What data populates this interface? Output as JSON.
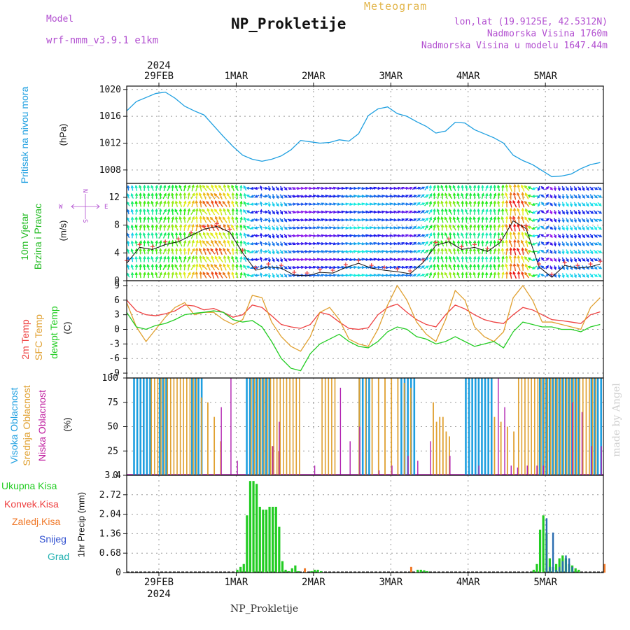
{
  "header": {
    "model_label": "Model",
    "model_value": "wrf-nmm_v3.9.1 e1km",
    "title": "NP_Prokletije",
    "subtitle": "Meteogram",
    "location": "lon,lat (19.9125E, 42.5312N)",
    "altitude": "Nadmorska Visina 1760m",
    "model_altitude": "Nadmorska Visina u modelu 1647.44m"
  },
  "footer": {
    "station": "NP_Prokletije",
    "credit": "made by Angel"
  },
  "time_axis": {
    "top_year": "2024",
    "bottom_year": "2024",
    "days": [
      "29FEB",
      "1MAR",
      "2MAR",
      "3MAR",
      "4MAR",
      "5MAR"
    ]
  },
  "panels": {
    "pressure": {
      "title": "Pritisak na nivou mora",
      "unit": "(hPa)"
    },
    "wind": {
      "title_line1": "10m Vjetar",
      "title_line2": "Brzina i Pravac",
      "unit": "(m/s)",
      "compass": {
        "n": "N",
        "e": "E",
        "w": "W",
        "s": "S"
      }
    },
    "temperature": {
      "label_2m": "2m Temp",
      "label_sfc": "SFC Temp",
      "label_dew": "dewpt Temp",
      "unit": "(C)"
    },
    "clouds": {
      "label_high": "Visoka Oblacnost",
      "label_mid": "Srednja Oblacnost",
      "label_low": "Niska Oblacnost",
      "unit": "(%)"
    },
    "precip": {
      "unit": "1hr Precip (mm)",
      "legend": [
        "Ukupna Kisa",
        "Konvek.Kisa",
        "Zaledj.Kisa",
        "Snijeg",
        "Grad"
      ]
    }
  },
  "colors": {
    "pressure": "#1e9fe0",
    "t2m": "#ee4040",
    "tsfc": "#e0a030",
    "tdew": "#22cc22",
    "cloud_high": "#1e9fe0",
    "cloud_mid": "#e0a030",
    "cloud_low": "#b020b0",
    "precip_total": "#22cc22",
    "precip_conv": "#ee4040",
    "precip_freezing": "#f07828",
    "precip_snow": "#3050d0",
    "precip_hail": "#20b0b0",
    "purple": "#b24fd0"
  },
  "chart_data": [
    {
      "type": "line",
      "name": "pressure",
      "ylim": [
        1006,
        1020.5
      ],
      "yticks": [
        "1008",
        "1012",
        "1016",
        "1020"
      ],
      "x_hours": [
        0,
        3,
        6,
        9,
        12,
        15,
        18,
        21,
        24,
        27,
        30,
        33,
        36,
        39,
        42,
        45,
        48,
        51,
        54,
        57,
        60,
        63,
        66,
        69,
        72,
        75,
        78,
        81,
        84,
        87,
        90,
        93,
        96,
        99,
        102,
        105,
        108,
        111,
        114,
        117,
        120,
        123,
        126,
        129,
        132,
        135,
        138,
        141,
        144,
        147
      ],
      "values": [
        1016.8,
        1018.2,
        1018.8,
        1019.4,
        1019.6,
        1018.7,
        1017.5,
        1016.8,
        1016.2,
        1014.6,
        1013.0,
        1011.5,
        1010.2,
        1009.6,
        1009.3,
        1009.6,
        1010.1,
        1011.0,
        1012.4,
        1012.2,
        1012.0,
        1012.1,
        1012.5,
        1012.3,
        1013.4,
        1016.1,
        1017.1,
        1017.4,
        1016.4,
        1016.0,
        1015.2,
        1014.5,
        1013.5,
        1013.8,
        1015.1,
        1015.0,
        1014.0,
        1013.4,
        1012.8,
        1012.0,
        1010.2,
        1009.4,
        1008.8,
        1007.9,
        1007.0,
        1007.1,
        1007.4,
        1008.2,
        1008.8,
        1009.1
      ]
    },
    {
      "type": "scatter",
      "name": "wind",
      "ylim": [
        0,
        14
      ],
      "yticks": [
        "0",
        "4",
        "8",
        "12"
      ],
      "x_hours": [
        0,
        4,
        8,
        12,
        16,
        20,
        24,
        28,
        32,
        36,
        40,
        44,
        48,
        52,
        56,
        60,
        64,
        68,
        72,
        76,
        80,
        84,
        88,
        92,
        96,
        100,
        104,
        108,
        112,
        116,
        120,
        124,
        128,
        132,
        136,
        140,
        144,
        147
      ],
      "speed": [
        2.5,
        4.8,
        4.5,
        5.2,
        5.6,
        6.5,
        7.4,
        7.8,
        7.0,
        4.0,
        1.5,
        2.0,
        1.8,
        0.8,
        0.7,
        1.2,
        1.1,
        1.9,
        2.5,
        1.8,
        1.5,
        1.3,
        1.0,
        2.6,
        5.1,
        5.6,
        4.5,
        4.8,
        4.2,
        5.5,
        8.6,
        7.5,
        2.0,
        0.5,
        2.2,
        1.8,
        2.0,
        2.4
      ],
      "direction_deg": [
        200,
        180,
        190,
        160,
        200,
        150,
        210,
        210,
        200,
        180,
        320,
        20,
        30,
        80,
        90,
        100,
        90,
        90,
        90,
        100,
        90,
        100,
        110,
        120,
        180,
        200,
        190,
        180,
        170,
        180,
        190,
        200,
        330,
        20,
        20,
        30,
        40,
        60
      ]
    },
    {
      "type": "line",
      "name": "temperature",
      "ylim": [
        -10,
        10
      ],
      "yticks": [
        "-9",
        "-6",
        "-3",
        "0",
        "3",
        "6",
        "9"
      ],
      "x_hours": [
        0,
        3,
        6,
        9,
        12,
        15,
        18,
        21,
        24,
        27,
        30,
        33,
        36,
        39,
        42,
        45,
        48,
        51,
        54,
        57,
        60,
        63,
        66,
        69,
        72,
        75,
        78,
        81,
        84,
        87,
        90,
        93,
        96,
        99,
        102,
        105,
        108,
        111,
        114,
        117,
        120,
        123,
        126,
        129,
        132,
        135,
        138,
        141,
        144,
        147
      ],
      "series": [
        {
          "name": "2m Temp",
          "values": [
            6.0,
            3.8,
            3.0,
            2.8,
            3.2,
            3.8,
            5.0,
            4.8,
            4.0,
            4.3,
            3.5,
            2.5,
            3.0,
            5.0,
            4.5,
            2.8,
            1.0,
            0.5,
            0.2,
            1.0,
            3.5,
            3.0,
            1.5,
            0.2,
            0.0,
            0.3,
            3.0,
            4.5,
            5.2,
            3.5,
            2.0,
            1.0,
            0.5,
            3.0,
            5.0,
            4.2,
            3.0,
            2.0,
            1.5,
            1.2,
            3.0,
            4.5,
            4.0,
            3.0,
            2.0,
            1.8,
            1.5,
            1.2,
            3.0,
            3.6
          ]
        },
        {
          "name": "SFC Temp",
          "values": [
            5.5,
            0.5,
            -2.5,
            0.0,
            2.5,
            4.5,
            5.5,
            3.0,
            3.5,
            3.5,
            2.0,
            1.0,
            2.0,
            7.0,
            6.5,
            1.5,
            -1.5,
            -3.5,
            -4.5,
            -1.5,
            3.5,
            4.5,
            2.0,
            -2.0,
            -3.0,
            -3.5,
            0.0,
            5.0,
            9.0,
            6.0,
            1.5,
            -1.0,
            -2.5,
            2.0,
            8.0,
            6.0,
            0.5,
            -1.5,
            -2.5,
            -0.5,
            6.5,
            9.0,
            6.0,
            1.5,
            1.5,
            1.0,
            0.5,
            0.0,
            4.5,
            6.5
          ]
        },
        {
          "name": "dewpt Temp",
          "values": [
            3.5,
            0.5,
            0.0,
            0.8,
            1.2,
            2.0,
            3.0,
            3.3,
            3.5,
            3.8,
            3.5,
            2.0,
            1.5,
            1.8,
            0.5,
            -2.5,
            -6.0,
            -8.0,
            -8.5,
            -5.0,
            -3.0,
            -2.0,
            -1.0,
            -2.5,
            -3.5,
            -3.8,
            -2.5,
            -0.5,
            0.5,
            0.0,
            -1.5,
            -2.0,
            -3.0,
            -2.5,
            -1.5,
            -2.5,
            -3.5,
            -3.0,
            -2.5,
            -3.8,
            -0.5,
            1.5,
            1.0,
            0.5,
            0.5,
            0.0,
            0.0,
            -0.5,
            0.5,
            1.0
          ]
        }
      ]
    },
    {
      "type": "bar",
      "name": "clouds",
      "ylim": [
        0,
        100
      ],
      "yticks": [
        "0",
        "25",
        "50",
        "75",
        "100"
      ],
      "hour_step": 1,
      "high_ranges": [
        [
          2,
          8
        ],
        [
          10,
          13
        ],
        [
          20,
          24
        ],
        [
          37,
          45
        ],
        [
          72,
          76
        ],
        [
          85,
          90
        ],
        [
          105,
          114
        ],
        [
          128,
          141
        ],
        [
          144,
          148
        ]
      ],
      "mid_ranges": [
        [
          7,
          22
        ],
        [
          38,
          54
        ],
        [
          60,
          65
        ],
        [
          121,
          146
        ]
      ],
      "mid_scattered_hours": [
        23,
        25,
        27,
        29,
        45,
        47,
        72,
        74,
        76,
        78,
        80,
        82,
        84,
        86,
        88,
        95,
        96,
        97,
        98,
        99,
        100,
        114,
        116,
        118,
        120
      ],
      "mid_scattered_values": [
        80,
        75,
        60,
        35,
        30,
        25,
        100,
        100,
        100,
        100,
        100,
        100,
        100,
        95,
        90,
        75,
        55,
        60,
        60,
        45,
        40,
        60,
        55,
        50,
        45
      ],
      "low_hours": [
        29,
        32,
        34,
        45,
        47,
        58,
        66,
        69,
        72,
        78,
        82,
        87,
        90,
        94,
        100,
        109,
        115,
        117,
        119,
        121,
        124,
        127,
        129,
        138,
        141,
        144,
        147
      ],
      "low_values": [
        70,
        100,
        15,
        30,
        55,
        10,
        90,
        35,
        50,
        5,
        10,
        20,
        15,
        35,
        20,
        10,
        100,
        70,
        10,
        8,
        10,
        10,
        10,
        75,
        65,
        30,
        30
      ]
    },
    {
      "type": "bar",
      "name": "precip",
      "ylim": [
        0,
        3.4
      ],
      "yticks": [
        "0",
        "0.68",
        "1.36",
        "2.04",
        "2.72",
        "3.4"
      ],
      "total_hours": [
        34,
        35,
        36,
        37,
        38,
        39,
        40,
        41,
        42,
        43,
        44,
        45,
        46,
        47,
        48,
        49,
        50,
        51,
        52,
        53,
        57,
        58,
        59,
        60,
        90,
        91,
        92,
        93,
        126,
        127,
        128,
        129,
        130,
        131,
        132,
        133,
        134,
        135,
        136,
        137,
        138,
        139,
        140
      ],
      "total_values": [
        0.1,
        0.2,
        0.3,
        2.0,
        3.2,
        3.2,
        3.1,
        2.3,
        2.2,
        2.2,
        2.3,
        2.3,
        2.3,
        1.6,
        0.4,
        0.1,
        0.05,
        0.15,
        0.25,
        0.05,
        0.05,
        0.1,
        0.1,
        0.05,
        0.1,
        0.1,
        0.08,
        0.05,
        0.1,
        0.3,
        1.5,
        2.0,
        1.4,
        0.5,
        0.2,
        0.3,
        0.5,
        0.6,
        0.5,
        0.3,
        0.25,
        0.15,
        0.1
      ],
      "snow_hours": [
        130,
        131,
        132,
        133,
        134,
        135,
        136,
        137,
        138
      ],
      "snow_values": [
        1.9,
        0.2,
        1.4,
        0.1,
        0.2,
        0.4,
        0.6,
        0.5,
        0.2
      ],
      "freezing_hours": [
        55,
        88,
        148
      ],
      "freezing_values": [
        0.15,
        0.2,
        0.3
      ]
    }
  ]
}
